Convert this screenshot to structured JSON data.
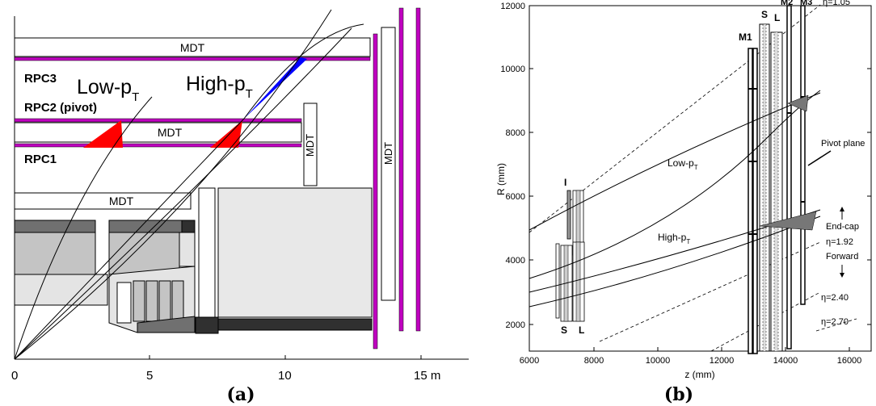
{
  "panel_a": {
    "caption": "(a)",
    "chambers": {
      "mdt_top": "MDT",
      "mdt_mid": "MDT",
      "mdt_low": "MDT",
      "mdt_vert_inner": "MDT",
      "mdt_vert_outer": "MDT"
    },
    "rpc": {
      "rpc3": "RPC3",
      "rpc2": "RPC2 (pivot)",
      "rpc1": "RPC1"
    },
    "tracks": {
      "low_pt": {
        "main": "Low-p",
        "sub": "T"
      },
      "high_pt": {
        "main": "High-p",
        "sub": "T"
      }
    },
    "axis": {
      "ticks": [
        "0",
        "5",
        "10",
        "15 m"
      ]
    },
    "colors": {
      "rpc": "#c000c0",
      "low_pt_cone": "#ff0000",
      "high_pt_cone_low": "#ff0000",
      "high_pt_cone_high": "#0000ff"
    }
  },
  "panel_b": {
    "caption": "(b)",
    "axes": {
      "xlabel": "z (mm)",
      "ylabel": "R (mm)",
      "xticks": [
        "6000",
        "8000",
        "10000",
        "12000",
        "14000",
        "16000"
      ],
      "yticks": [
        "2000",
        "4000",
        "6000",
        "8000",
        "10000",
        "12000"
      ]
    },
    "stations": {
      "inner": "I",
      "inner_s": "S",
      "inner_l": "L",
      "m1": "M1",
      "m2": "M2",
      "m3": "M3",
      "s": "S",
      "l": "L"
    },
    "labels": {
      "low_pt": {
        "main": "Low-p",
        "sub": "T"
      },
      "high_pt": {
        "main": "High-p",
        "sub": "T"
      },
      "pivot": "Pivot plane",
      "endcap": "End-cap",
      "forward": "Forward"
    },
    "eta_lines": [
      {
        "label": "η=1.05"
      },
      {
        "label": "η=1.92"
      },
      {
        "label": "η=2.40"
      },
      {
        "label": "η=2.70"
      }
    ]
  }
}
